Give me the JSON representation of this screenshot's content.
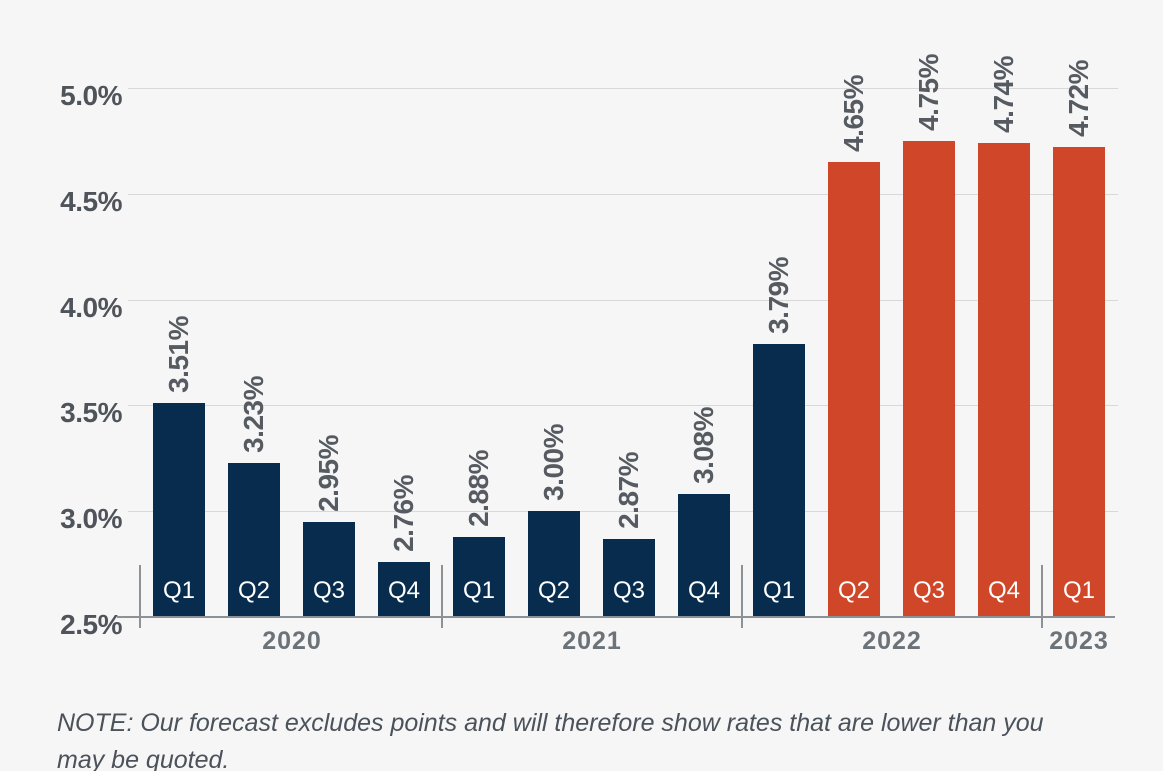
{
  "chart_data": {
    "type": "bar",
    "title": "",
    "y_axis": {
      "range": [
        2.5,
        5.0
      ],
      "grid": true,
      "ticks": [
        {
          "value": 5.0,
          "label": "5.0%"
        },
        {
          "value": 4.5,
          "label": "4.5%"
        },
        {
          "value": 4.0,
          "label": "4.0%"
        },
        {
          "value": 3.5,
          "label": "3.5%"
        },
        {
          "value": 3.0,
          "label": "3.0%"
        },
        {
          "value": 2.5,
          "label": "2.5%"
        }
      ]
    },
    "points": [
      {
        "year": "2020",
        "quarter": "Q1",
        "value": 3.51,
        "label": "3.51%",
        "forecast": false
      },
      {
        "year": "2020",
        "quarter": "Q2",
        "value": 3.23,
        "label": "3.23%",
        "forecast": false
      },
      {
        "year": "2020",
        "quarter": "Q3",
        "value": 2.95,
        "label": "2.95%",
        "forecast": false
      },
      {
        "year": "2020",
        "quarter": "Q4",
        "value": 2.76,
        "label": "2.76%",
        "forecast": false
      },
      {
        "year": "2021",
        "quarter": "Q1",
        "value": 2.88,
        "label": "2.88%",
        "forecast": false
      },
      {
        "year": "2021",
        "quarter": "Q2",
        "value": 3.0,
        "label": "3.00%",
        "forecast": false
      },
      {
        "year": "2021",
        "quarter": "Q3",
        "value": 2.87,
        "label": "2.87%",
        "forecast": false
      },
      {
        "year": "2021",
        "quarter": "Q4",
        "value": 3.08,
        "label": "3.08%",
        "forecast": false
      },
      {
        "year": "2022",
        "quarter": "Q1",
        "value": 3.79,
        "label": "3.79%",
        "forecast": false
      },
      {
        "year": "2022",
        "quarter": "Q2",
        "value": 4.65,
        "label": "4.65%",
        "forecast": true
      },
      {
        "year": "2022",
        "quarter": "Q3",
        "value": 4.75,
        "label": "4.75%",
        "forecast": true
      },
      {
        "year": "2022",
        "quarter": "Q4",
        "value": 4.74,
        "label": "4.74%",
        "forecast": true
      },
      {
        "year": "2023",
        "quarter": "Q1",
        "value": 4.72,
        "label": "4.72%",
        "forecast": true
      }
    ],
    "year_groups": [
      {
        "label": "2020",
        "start": 0,
        "count": 4
      },
      {
        "label": "2021",
        "start": 4,
        "count": 4
      },
      {
        "label": "2022",
        "start": 8,
        "count": 4
      },
      {
        "label": "2023",
        "start": 12,
        "count": 1
      }
    ],
    "colors": {
      "actual": "#072c4d",
      "forecast": "#d04628",
      "background": "#f6f6f7",
      "gridline": "#d8d8d9",
      "axis": "#8d9296",
      "tick_label": "#4f545a",
      "value_label": "#565b61",
      "year_label": "#6b7278",
      "quarter_label": "#ffffff"
    },
    "note": "NOTE: Our forecast excludes points and will therefore show rates that are lower than you may be quoted."
  }
}
